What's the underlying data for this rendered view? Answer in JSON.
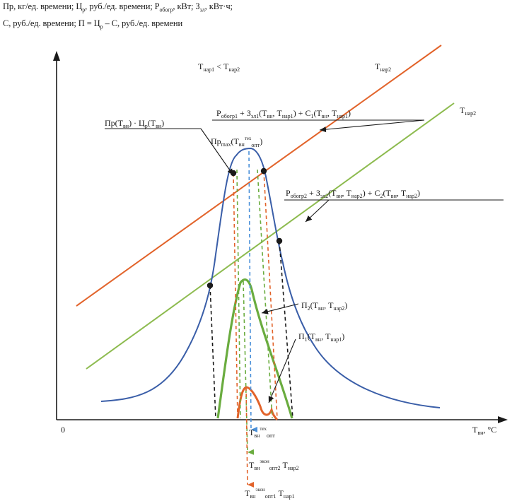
{
  "header": {
    "line1": {
      "pr": "Пр, кг/ед. времени; Ц",
      "c_sub": "р",
      "mid": ", руб./ед. времени; P",
      "p_sub": "обогр",
      "mid2": ", кВт; З",
      "z_sub": "эл",
      "end": ", кВт·ч;"
    },
    "line2": {
      "a": "С, руб./ед. времени; П = Ц",
      "a_sub": "р",
      "b": " – С, руб./ед. времени"
    }
  },
  "axes": {
    "origin": "0",
    "x_label": {
      "t": "T",
      "t_sub": "вн",
      "unit": ", °C"
    }
  },
  "labels": {
    "condition": {
      "t1": "T",
      "s1": "нар1",
      "op": " < ",
      "t2": "T",
      "s2": "нар2"
    },
    "line_orange": {
      "t": "T",
      "s": "нар2"
    },
    "line_green": {
      "t": "T",
      "s": "нар2"
    },
    "eq1": {
      "p": "P",
      "p_sub": "обогр1",
      "z": " + З",
      "z_sub": "эл1",
      "a": "(T",
      "a_sub": "вн",
      "b": ", T",
      "b_sub": "нар1",
      "c": ") + C",
      "c_sub": "1",
      "d": "(T",
      "d_sub": "вн",
      "e": ", T",
      "e_sub": "нар1",
      "f": ")"
    },
    "eq2": {
      "p": "P",
      "p_sub": "обогр2",
      "z": " + З",
      "z_sub": "эл2",
      "a": "(T",
      "a_sub": "вн",
      "b": ", T",
      "b_sub": "нар2",
      "c": ") + C",
      "c_sub": "2",
      "d": "(T",
      "d_sub": "вн",
      "e": ", T",
      "e_sub": "нар2",
      "f": ")"
    },
    "prod": {
      "a": "Пр(T",
      "a_sub": "вн",
      "b": ") · Ц",
      "b_sub": "р",
      "c": "(T",
      "c_sub": "вн",
      "d": ")"
    },
    "prmax": {
      "a": "Пр",
      "a_sub": "max",
      "b": "(T",
      "b_sub": "вн",
      "sup": "тех",
      "sub2": "опт",
      "c": ")"
    },
    "p2": {
      "a": "П",
      "a_sub": "2",
      "b": "(T",
      "b_sub": "вн",
      "c": ", T",
      "c_sub": "нар2",
      "d": ")"
    },
    "p1": {
      "a": "П",
      "a_sub": "1",
      "b": "(T",
      "b_sub": "вн",
      "c": ", T",
      "c_sub": "нар1",
      "d": ")"
    },
    "t_tech": {
      "t": "T",
      "sub": "вн",
      "sup": "тех",
      "sub2": "опт"
    },
    "t_opt2": {
      "t": "T",
      "sub": "вн",
      "sup": "экон",
      "sub2": "опт2",
      "s": " T",
      "s_sub": "нар2"
    },
    "t_opt1": {
      "t": "T",
      "sub": "вн",
      "sup": "экон",
      "sub2": "опт1",
      "s": " T",
      "s_sub": "нар1"
    }
  },
  "colors": {
    "axis": "#1a1a1a",
    "productivity": "#3a5ea8",
    "cost_line_1": "#e2632a",
    "cost_line_2": "#8dbb4f",
    "profit_2": "#6aac3f",
    "profit_1": "#e2632a",
    "dropline_blue": "#4a90d9"
  }
}
